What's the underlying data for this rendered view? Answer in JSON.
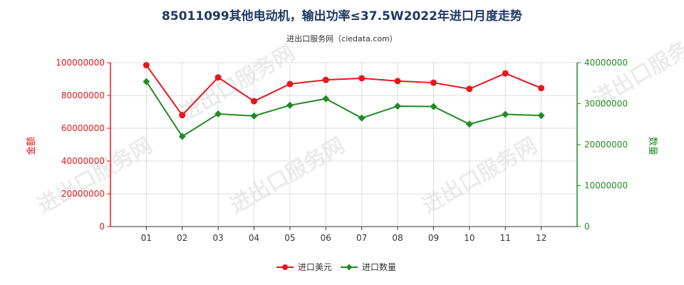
{
  "chart_data": {
    "type": "line",
    "title": "85011099其他电动机，输出功率≤37.5W2022年进口月度走势",
    "subtitle": "进出口服务网（ciedata.com）",
    "watermark": "进出口服务网",
    "categories": [
      "01",
      "02",
      "03",
      "04",
      "05",
      "06",
      "07",
      "08",
      "09",
      "10",
      "11",
      "12"
    ],
    "left_axis": {
      "label": "金额",
      "min": 0,
      "max": 100000000,
      "ticks": [
        0,
        20000000,
        40000000,
        60000000,
        80000000,
        100000000
      ],
      "tick_labels": [
        "0",
        "20000000",
        "40000000",
        "60000000",
        "80000000",
        "100000000"
      ],
      "color": "#e8171b"
    },
    "right_axis": {
      "label": "数量",
      "min": 0,
      "max": 40000000,
      "ticks": [
        0,
        10000000,
        20000000,
        30000000,
        40000000
      ],
      "tick_labels": [
        "0",
        "10000000",
        "20000000",
        "30000000",
        "40000000"
      ],
      "color": "#228b22"
    },
    "series": [
      {
        "name": "进口美元",
        "axis": "left",
        "color": "#e8171b",
        "marker": "circle",
        "values": [
          98500000,
          68000000,
          91000000,
          76500000,
          87000000,
          89500000,
          90500000,
          88800000,
          87800000,
          84000000,
          93500000,
          84500000
        ]
      },
      {
        "name": "进口数量",
        "axis": "right",
        "color": "#228b22",
        "marker": "diamond",
        "values": [
          35400000,
          22000000,
          27500000,
          27000000,
          29600000,
          31200000,
          26500000,
          29400000,
          29300000,
          25000000,
          27400000,
          27100000
        ]
      }
    ],
    "grid": true,
    "legend_position": "bottom-center"
  }
}
